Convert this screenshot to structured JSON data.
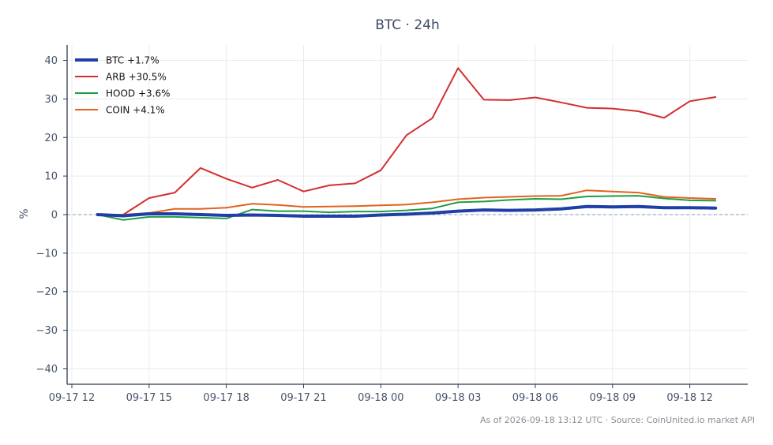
{
  "chart_data": {
    "type": "line",
    "title": "BTC · 24h",
    "xlabel": "",
    "ylabel": "%",
    "ylim": [
      -44,
      44
    ],
    "y_ticks": [
      40,
      30,
      20,
      10,
      0,
      -10,
      -20,
      -30,
      -40
    ],
    "y_tick_labels": [
      "40",
      "30",
      "20",
      "10",
      "0",
      "−10",
      "−20",
      "−30",
      "−40"
    ],
    "x_ticks": [
      "09-17 12",
      "09-17 15",
      "09-17 18",
      "09-17 21",
      "09-18 00",
      "09-18 03",
      "09-18 06",
      "09-18 09",
      "09-18 12"
    ],
    "x_range": [
      "2026-09-17 12:00",
      "2026-09-18 14:15"
    ],
    "grid": true,
    "zero_line": true,
    "legend_position": "top-left",
    "x": [
      "2026-09-17 13:00",
      "2026-09-17 14:00",
      "2026-09-17 15:00",
      "2026-09-17 16:00",
      "2026-09-17 17:00",
      "2026-09-17 18:00",
      "2026-09-17 19:00",
      "2026-09-17 20:00",
      "2026-09-17 21:00",
      "2026-09-17 22:00",
      "2026-09-17 23:00",
      "2026-09-18 00:00",
      "2026-09-18 01:00",
      "2026-09-18 02:00",
      "2026-09-18 03:00",
      "2026-09-18 04:00",
      "2026-09-18 05:00",
      "2026-09-18 06:00",
      "2026-09-18 07:00",
      "2026-09-18 08:00",
      "2026-09-18 09:00",
      "2026-09-18 10:00",
      "2026-09-18 11:00",
      "2026-09-18 12:00",
      "2026-09-18 13:00"
    ],
    "series": [
      {
        "name": "BTC +1.7%",
        "color": "#1f3fa6",
        "emphasis": true,
        "values": [
          0.0,
          -0.3,
          0.2,
          0.2,
          0.0,
          -0.2,
          -0.1,
          -0.2,
          -0.4,
          -0.4,
          -0.4,
          -0.1,
          0.1,
          0.4,
          0.9,
          1.2,
          1.1,
          1.2,
          1.5,
          2.1,
          2.0,
          2.1,
          1.8,
          1.8,
          1.7
        ]
      },
      {
        "name": "ARB +30.5%",
        "color": "#d32f2f",
        "emphasis": false,
        "values": [
          0.0,
          0.0,
          4.3,
          5.7,
          12.1,
          9.3,
          7.0,
          9.0,
          6.0,
          7.6,
          8.1,
          11.5,
          20.6,
          25.0,
          38.0,
          29.8,
          29.7,
          30.4,
          29.1,
          27.7,
          27.5,
          26.8,
          25.1,
          29.4,
          30.5
        ]
      },
      {
        "name": "HOOD +3.6%",
        "color": "#1f9d45",
        "emphasis": false,
        "values": [
          0.0,
          -1.4,
          -0.6,
          -0.6,
          -0.8,
          -1.0,
          1.3,
          0.9,
          0.9,
          0.6,
          0.8,
          0.8,
          1.1,
          1.6,
          3.2,
          3.4,
          3.8,
          4.1,
          4.0,
          4.7,
          4.8,
          4.9,
          4.2,
          3.7,
          3.6
        ]
      },
      {
        "name": "COIN +4.1%",
        "color": "#e0631f",
        "emphasis": false,
        "values": [
          0.0,
          0.0,
          0.4,
          1.5,
          1.5,
          1.8,
          2.8,
          2.5,
          2.0,
          2.1,
          2.2,
          2.4,
          2.6,
          3.2,
          4.0,
          4.4,
          4.6,
          4.8,
          4.9,
          6.3,
          6.0,
          5.7,
          4.6,
          4.3,
          4.1
        ]
      }
    ]
  },
  "footer": {
    "source_text": "As of 2026-09-18 13:12 UTC · Source: CoinUnited.io market API"
  }
}
